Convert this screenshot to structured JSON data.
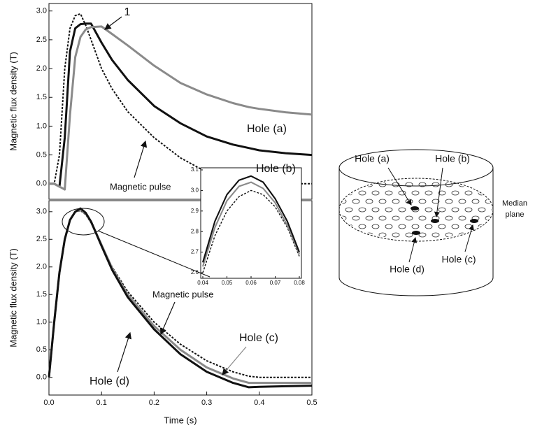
{
  "chart_data": [
    {
      "type": "line",
      "ylabel": "Magnetic flux density (T)",
      "x": [
        0,
        0.01,
        0.02,
        0.03,
        0.04,
        0.05,
        0.06,
        0.07,
        0.08,
        0.1,
        0.12,
        0.15,
        0.2,
        0.25,
        0.3,
        0.35,
        0.38,
        0.4,
        0.45,
        0.5
      ],
      "xlim": [
        0,
        0.5
      ],
      "ylim": [
        -0.27,
        3.13
      ],
      "yticks": [
        {
          "value": 0,
          "label": "0.0"
        },
        0.5,
        {
          "value": 1,
          "label": "1.0"
        },
        1.5,
        {
          "value": 2,
          "label": "2.0"
        },
        2.5,
        {
          "value": 3,
          "label": "3.0"
        }
      ],
      "series": [
        {
          "name": "Magnetic pulse",
          "color": "#111111",
          "style": "dashed",
          "values": [
            0,
            0,
            0.5,
            2.0,
            2.7,
            2.92,
            2.95,
            2.75,
            2.5,
            2.0,
            1.65,
            1.25,
            0.8,
            0.45,
            0.2,
            0.05,
            0,
            0,
            0,
            0
          ]
        },
        {
          "name": "Hole (b)",
          "color": "#111111",
          "style": "solid",
          "values": [
            0,
            0,
            -0.05,
            0.8,
            2.3,
            2.7,
            2.77,
            2.78,
            2.78,
            2.45,
            2.15,
            1.8,
            1.35,
            1.05,
            0.82,
            0.68,
            0.62,
            0.58,
            0.53,
            0.5
          ]
        },
        {
          "name": "Hole (a)",
          "color": "#8a8a8a",
          "style": "solid",
          "values": [
            0,
            0,
            -0.05,
            -0.1,
            1.2,
            2.2,
            2.55,
            2.68,
            2.72,
            2.73,
            2.6,
            2.4,
            2.05,
            1.75,
            1.55,
            1.4,
            1.33,
            1.3,
            1.24,
            1.2
          ]
        }
      ],
      "annotations": [
        "1"
      ]
    },
    {
      "type": "line",
      "ylabel": "Magnetic flux density (T)",
      "xlabel": "Time (s)",
      "x": [
        0,
        0.01,
        0.02,
        0.03,
        0.04,
        0.05,
        0.06,
        0.07,
        0.08,
        0.1,
        0.12,
        0.15,
        0.2,
        0.25,
        0.3,
        0.35,
        0.38,
        0.4,
        0.45,
        0.5
      ],
      "xlim": [
        0,
        0.5
      ],
      "xticks": [
        {
          "value": 0,
          "label": "0.0"
        },
        0.1,
        0.2,
        0.3,
        0.4,
        0.5
      ],
      "ylim": [
        -0.32,
        3.2
      ],
      "yticks": [
        {
          "value": 0,
          "label": "0.0"
        },
        0.5,
        {
          "value": 1,
          "label": "1.0"
        },
        1.5,
        {
          "value": 2,
          "label": "2.0"
        },
        2.5,
        {
          "value": 3,
          "label": "3.0"
        }
      ],
      "series": [
        {
          "name": "Magnetic pulse",
          "color": "#111111",
          "style": "dashed",
          "values": [
            0,
            1.0,
            1.9,
            2.5,
            2.85,
            3.0,
            3.02,
            2.95,
            2.8,
            2.4,
            2.0,
            1.55,
            1.0,
            0.6,
            0.3,
            0.1,
            0.02,
            0,
            0,
            0
          ]
        },
        {
          "name": "Hole (c)",
          "color": "#8a8a8a",
          "style": "solid",
          "values": [
            0,
            1.0,
            1.9,
            2.5,
            2.85,
            3.0,
            3.04,
            2.97,
            2.82,
            2.4,
            1.98,
            1.5,
            0.93,
            0.5,
            0.18,
            -0.02,
            -0.1,
            -0.1,
            -0.1,
            -0.1
          ]
        },
        {
          "name": "Hole (d)",
          "color": "#111111",
          "style": "solid",
          "values": [
            0,
            1.0,
            1.9,
            2.5,
            2.85,
            3.0,
            3.06,
            2.98,
            2.82,
            2.38,
            1.95,
            1.45,
            0.87,
            0.42,
            0.1,
            -0.1,
            -0.18,
            -0.17,
            -0.16,
            -0.15
          ]
        }
      ]
    },
    {
      "type": "line",
      "x": [
        0.04,
        0.045,
        0.05,
        0.055,
        0.06,
        0.065,
        0.07,
        0.075,
        0.08
      ],
      "xlim": [
        0.04,
        0.08
      ],
      "xticks": [
        0.04,
        0.05,
        0.06,
        0.07,
        0.08
      ],
      "ylim": [
        2.6,
        3.1
      ],
      "yticks": [
        2.6,
        2.7,
        2.8,
        2.9,
        {
          "value": 3,
          "label": "3.0"
        },
        3.1
      ],
      "series": [
        {
          "color": "#111111",
          "style": "dashed",
          "values": [
            2.6,
            2.78,
            2.9,
            2.97,
            3.0,
            2.98,
            2.92,
            2.82,
            2.68
          ]
        },
        {
          "color": "#8a8a8a",
          "style": "solid",
          "values": [
            2.63,
            2.82,
            2.95,
            3.02,
            3.04,
            3.01,
            2.94,
            2.83,
            2.69
          ]
        },
        {
          "color": "#111111",
          "style": "solid",
          "values": [
            2.65,
            2.85,
            2.98,
            3.05,
            3.07,
            3.04,
            2.96,
            2.85,
            2.7
          ]
        }
      ]
    }
  ],
  "diagram": {
    "labels": [
      "Hole (a)",
      "Hole (b)",
      "Hole (c)",
      "Hole (d)"
    ],
    "plane_label": "Median plane"
  }
}
